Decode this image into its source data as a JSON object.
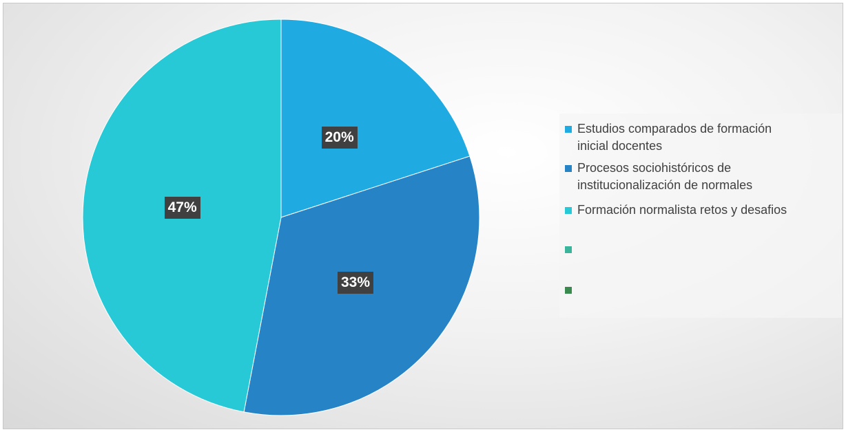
{
  "chart_data": {
    "type": "pie",
    "categories": [
      "Estudios comparados de formación inicial docentes",
      "Procesos sociohistóricos de institucionalización de normales",
      "Formación normalista retos y desafios",
      null,
      null
    ],
    "values": [
      20,
      33,
      47,
      0,
      0
    ],
    "value_labels": [
      "20%",
      "33%",
      "47%",
      null,
      null
    ],
    "colors": [
      "#1faae2",
      "#2683c6",
      "#28c9d7",
      "#3ab59b",
      "#3a8a4f"
    ],
    "legend": "right"
  }
}
